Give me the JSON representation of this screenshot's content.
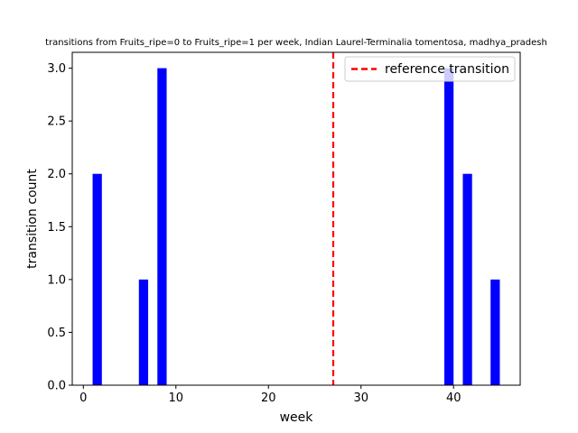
{
  "chart_data": {
    "type": "bar",
    "title": "transitions from Fruits_ripe=0 to Fruits_ripe=1 per week, Indian Laurel-Terminalia tomentosa, madhya_pradesh",
    "xlabel": "week",
    "ylabel": "transition count",
    "xlim": [
      -1.2,
      47.2
    ],
    "ylim": [
      0,
      3.15
    ],
    "xticks": [
      0,
      10,
      20,
      30,
      40
    ],
    "yticks": [
      0.0,
      0.5,
      1.0,
      1.5,
      2.0,
      2.5,
      3.0
    ],
    "xtick_labels": [
      "0",
      "10",
      "20",
      "30",
      "40"
    ],
    "ytick_labels": [
      "0.0",
      "0.5",
      "1.0",
      "1.5",
      "2.0",
      "2.5",
      "3.0"
    ],
    "bar_width": 1.0,
    "bar_color": "#0000ff",
    "x": [
      1.5,
      6.5,
      8.5,
      39.5,
      41.5,
      44.5
    ],
    "values": [
      2,
      1,
      3,
      3,
      2,
      1
    ],
    "reference_line": {
      "x": 27,
      "color": "#ff0000",
      "style": "dashed"
    },
    "legend": {
      "position": "upper-right",
      "entries": [
        "reference transition"
      ]
    },
    "grid": false
  }
}
